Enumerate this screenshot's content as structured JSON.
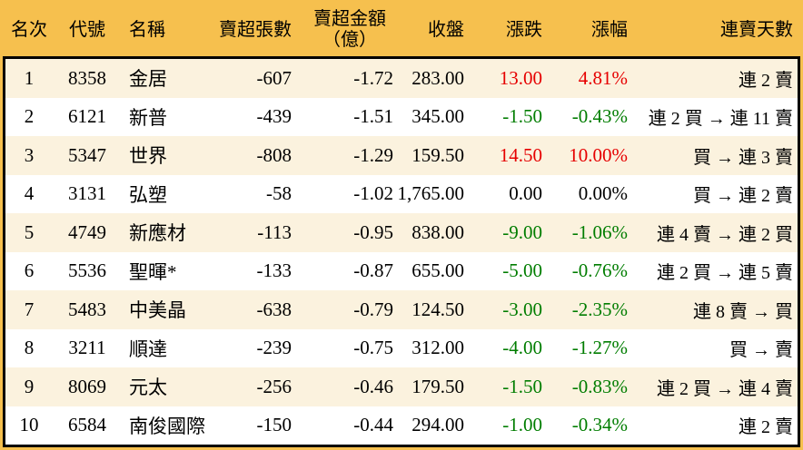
{
  "colors": {
    "orange": "#f6c04e",
    "cream": "#fbf2de",
    "white": "#ffffff",
    "red": "#e60000",
    "green": "#007d00",
    "border": "#000000",
    "text": "#000000"
  },
  "chart_data": {
    "type": "table",
    "columns": [
      {
        "key": "rank",
        "label": "名次",
        "align": "center"
      },
      {
        "key": "code",
        "label": "代號",
        "align": "center"
      },
      {
        "key": "name",
        "label": "名稱",
        "align": "left"
      },
      {
        "key": "volume",
        "label": "賣超張數",
        "align": "right"
      },
      {
        "key": "amount",
        "label": "賣超金額",
        "label2": "（億）",
        "align": "right"
      },
      {
        "key": "close",
        "label": "收盤",
        "align": "right"
      },
      {
        "key": "change",
        "label": "漲跌",
        "align": "right"
      },
      {
        "key": "pct",
        "label": "漲幅",
        "align": "right"
      },
      {
        "key": "days",
        "label": "連賣天數",
        "align": "right"
      }
    ],
    "rows": [
      {
        "rank": "1",
        "code": "8358",
        "name": "金居",
        "volume": "-607",
        "amount": "-1.72",
        "close": "283.00",
        "change": "13.00",
        "pct": "4.81%",
        "days": "連 2 賣",
        "trend": "up"
      },
      {
        "rank": "2",
        "code": "6121",
        "name": "新普",
        "volume": "-439",
        "amount": "-1.51",
        "close": "345.00",
        "change": "-1.50",
        "pct": "-0.43%",
        "days": "連 2 買 → 連 11 賣",
        "trend": "down"
      },
      {
        "rank": "3",
        "code": "5347",
        "name": "世界",
        "volume": "-808",
        "amount": "-1.29",
        "close": "159.50",
        "change": "14.50",
        "pct": "10.00%",
        "days": "買 → 連 3 賣",
        "trend": "up"
      },
      {
        "rank": "4",
        "code": "3131",
        "name": "弘塑",
        "volume": "-58",
        "amount": "-1.02",
        "close": "1,765.00",
        "change": "0.00",
        "pct": "0.00%",
        "days": "買 → 連 2 賣",
        "trend": "flat"
      },
      {
        "rank": "5",
        "code": "4749",
        "name": "新應材",
        "volume": "-113",
        "amount": "-0.95",
        "close": "838.00",
        "change": "-9.00",
        "pct": "-1.06%",
        "days": "連 4 賣 → 連 2 買",
        "trend": "down"
      },
      {
        "rank": "6",
        "code": "5536",
        "name": "聖暉*",
        "volume": "-133",
        "amount": "-0.87",
        "close": "655.00",
        "change": "-5.00",
        "pct": "-0.76%",
        "days": "連 2 買 → 連 5 賣",
        "trend": "down"
      },
      {
        "rank": "7",
        "code": "5483",
        "name": "中美晶",
        "volume": "-638",
        "amount": "-0.79",
        "close": "124.50",
        "change": "-3.00",
        "pct": "-2.35%",
        "days": "連 8 賣 → 買",
        "trend": "down"
      },
      {
        "rank": "8",
        "code": "3211",
        "name": "順達",
        "volume": "-239",
        "amount": "-0.75",
        "close": "312.00",
        "change": "-4.00",
        "pct": "-1.27%",
        "days": "買 → 賣",
        "trend": "down"
      },
      {
        "rank": "9",
        "code": "8069",
        "name": "元太",
        "volume": "-256",
        "amount": "-0.46",
        "close": "179.50",
        "change": "-1.50",
        "pct": "-0.83%",
        "days": "連 2 買 → 連 4 賣",
        "trend": "down"
      },
      {
        "rank": "10",
        "code": "6584",
        "name": "南俊國際",
        "volume": "-150",
        "amount": "-0.44",
        "close": "294.00",
        "change": "-1.00",
        "pct": "-0.34%",
        "days": "連 2 賣",
        "trend": "down"
      }
    ]
  }
}
